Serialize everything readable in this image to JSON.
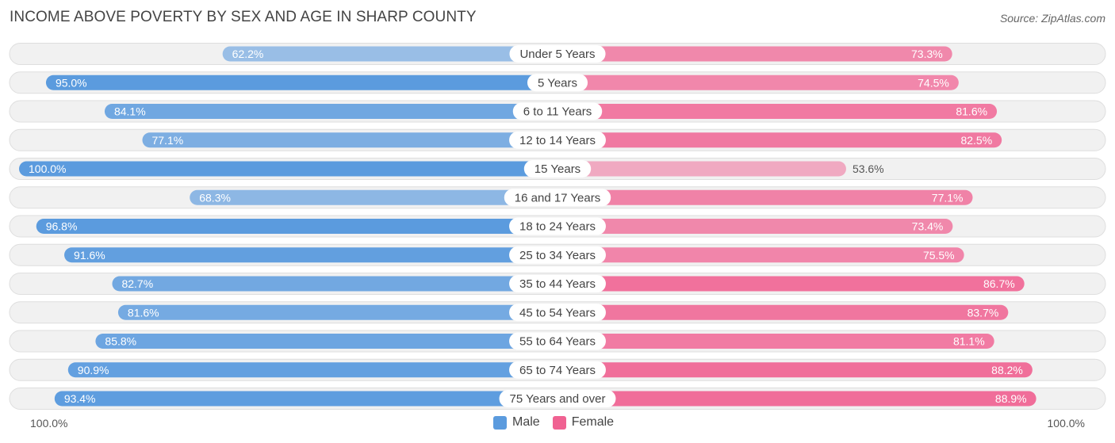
{
  "title": "INCOME ABOVE POVERTY BY SEX AND AGE IN SHARP COUNTY",
  "source": "Source: ZipAtlas.com",
  "axis": {
    "left_label": "100.0%",
    "right_label": "100.0%"
  },
  "legend": {
    "male": {
      "label": "Male",
      "color": "#5b9bde"
    },
    "female": {
      "label": "Female",
      "color": "#f06292"
    }
  },
  "chart_data": {
    "type": "bar",
    "orientation": "horizontal-diverging",
    "title": "INCOME ABOVE POVERTY BY SEX AND AGE IN SHARP COUNTY",
    "xlim": [
      0,
      100
    ],
    "categories": [
      "Under 5 Years",
      "5 Years",
      "6 to 11 Years",
      "12 to 14 Years",
      "15 Years",
      "16 and 17 Years",
      "18 to 24 Years",
      "25 to 34 Years",
      "35 to 44 Years",
      "45 to 54 Years",
      "55 to 64 Years",
      "65 to 74 Years",
      "75 Years and over"
    ],
    "series": [
      {
        "name": "Male",
        "values": [
          62.2,
          95.0,
          84.1,
          77.1,
          100.0,
          68.3,
          96.8,
          91.6,
          82.7,
          81.6,
          85.8,
          90.9,
          93.4
        ],
        "labels": [
          "62.2%",
          "95.0%",
          "84.1%",
          "77.1%",
          "100.0%",
          "68.3%",
          "96.8%",
          "91.6%",
          "82.7%",
          "81.6%",
          "85.8%",
          "90.9%",
          "93.4%"
        ]
      },
      {
        "name": "Female",
        "values": [
          73.3,
          74.5,
          81.6,
          82.5,
          53.6,
          77.1,
          73.4,
          75.5,
          86.7,
          83.7,
          81.1,
          88.2,
          88.9
        ],
        "labels": [
          "73.3%",
          "74.5%",
          "81.6%",
          "82.5%",
          "53.6%",
          "77.1%",
          "73.4%",
          "75.5%",
          "86.7%",
          "83.7%",
          "81.1%",
          "88.2%",
          "88.9%"
        ]
      }
    ]
  }
}
